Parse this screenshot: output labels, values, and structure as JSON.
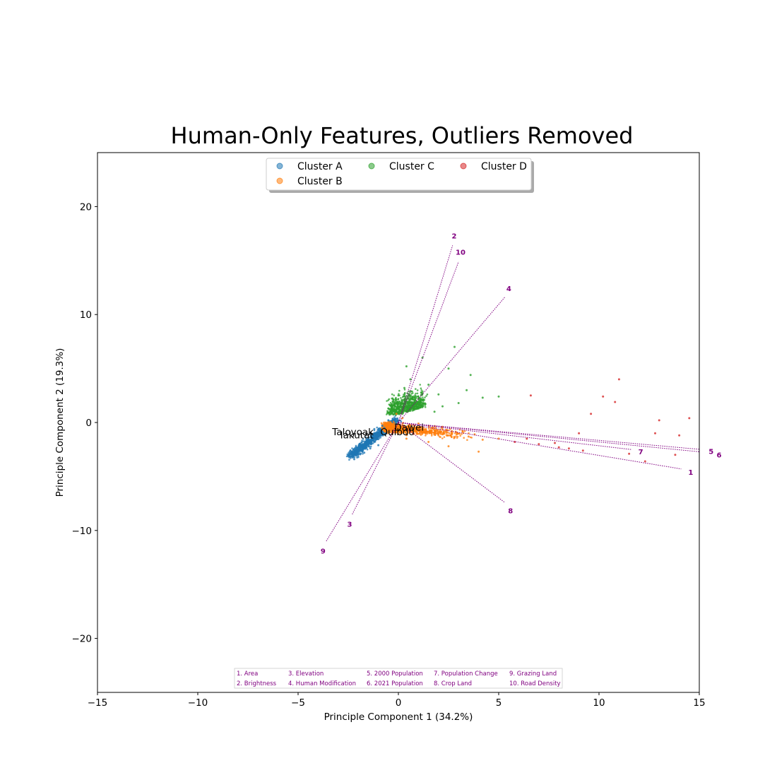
{
  "chart_data": {
    "type": "scatter",
    "title": "Human-Only Features, Outliers Removed",
    "xlabel": "Principle Component 1 (34.2%)",
    "ylabel": "Principle Component 2 (19.3%)",
    "xlim": [
      -15,
      15
    ],
    "ylim": [
      -25,
      25
    ],
    "x_ticks": [
      -15,
      -10,
      -5,
      0,
      5,
      10,
      15
    ],
    "y_ticks": [
      -20,
      -10,
      0,
      10,
      20
    ],
    "x_tick_labels": [
      "−15",
      "−10",
      "−5",
      "0",
      "5",
      "10",
      "15"
    ],
    "y_tick_labels": [
      "−20",
      "−10",
      "0",
      "10",
      "20"
    ],
    "grid": false,
    "legend_position": "top-center",
    "series": [
      {
        "name": "Cluster A",
        "color": "#1f77b4",
        "x": [
          -2.1,
          -1.8,
          -1.5,
          -1.2,
          -0.9,
          -1.7,
          -1.3,
          -1.0,
          -0.7,
          -2.0,
          -1.6,
          -1.1,
          -0.8,
          -0.5,
          -1.4,
          -1.9,
          -2.2,
          -1.0,
          -0.6,
          -1.2
        ],
        "y": [
          -3.0,
          -2.6,
          -2.2,
          -1.8,
          -1.2,
          -2.8,
          -1.5,
          -0.9,
          -0.5,
          -3.2,
          -2.0,
          -1.4,
          -0.3,
          0.2,
          -2.4,
          -2.5,
          -3.4,
          -2.1,
          -1.0,
          -0.6
        ]
      },
      {
        "name": "Cluster B",
        "color": "#ff7f0e",
        "x": [
          -0.6,
          -0.3,
          0.2,
          0.7,
          1.3,
          2.0,
          2.8,
          3.5,
          4.2,
          5.0,
          1.0,
          1.8,
          2.5,
          3.2,
          4.0,
          0.4,
          -0.1,
          1.5,
          2.2,
          3.8
        ],
        "y": [
          -0.2,
          -1.0,
          0.4,
          -0.6,
          -0.9,
          -1.2,
          -1.4,
          -1.3,
          -1.6,
          -1.5,
          -0.1,
          -0.7,
          -2.2,
          -0.8,
          -2.7,
          -1.5,
          0.8,
          -1.8,
          -0.4,
          -1.1
        ]
      },
      {
        "name": "Cluster C",
        "color": "#2ca02c",
        "x": [
          -0.3,
          0.0,
          0.3,
          0.6,
          1.0,
          1.5,
          2.0,
          2.5,
          3.0,
          3.6,
          4.2,
          5.0,
          0.2,
          0.8,
          1.2,
          2.2,
          2.8,
          0.4,
          1.8,
          3.4
        ],
        "y": [
          1.5,
          2.5,
          3.2,
          4.0,
          2.2,
          3.5,
          2.6,
          5.0,
          1.8,
          4.4,
          2.3,
          2.4,
          0.8,
          1.2,
          6.0,
          1.5,
          7.0,
          5.2,
          1.0,
          3.0
        ]
      },
      {
        "name": "Cluster D",
        "color": "#d62728",
        "x": [
          5.8,
          6.4,
          7.0,
          7.8,
          8.5,
          9.2,
          9.6,
          10.2,
          10.8,
          11.5,
          12.3,
          13.0,
          13.8,
          14.5,
          6.6,
          8.0,
          9.0,
          11.0,
          12.8,
          14.0
        ],
        "y": [
          -1.8,
          -1.5,
          -2.0,
          -1.9,
          -2.4,
          -2.6,
          0.8,
          2.4,
          1.9,
          -2.9,
          -3.6,
          0.2,
          -3.0,
          0.4,
          2.5,
          -2.3,
          -1.0,
          4.0,
          -1.0,
          -1.2
        ]
      }
    ],
    "loading_vectors": {
      "color": "#800080",
      "vectors": [
        {
          "label": "1",
          "x": 14.1,
          "y": -4.3
        },
        {
          "label": "2",
          "x": 2.7,
          "y": 16.4
        },
        {
          "label": "3",
          "x": -2.3,
          "y": -8.5
        },
        {
          "label": "4",
          "x": 5.3,
          "y": 11.6
        },
        {
          "label": "5",
          "x": 15.1,
          "y": -2.5
        },
        {
          "label": "6",
          "x": 15.5,
          "y": -2.8
        },
        {
          "label": "7",
          "x": 11.6,
          "y": -2.5
        },
        {
          "label": "8",
          "x": 5.3,
          "y": -7.4
        },
        {
          "label": "9",
          "x": -3.6,
          "y": -11.0
        },
        {
          "label": "10",
          "x": 3.0,
          "y": 14.9
        }
      ]
    },
    "annotations": [
      {
        "text": "Taloyoak",
        "x": -3.3,
        "y": -0.9
      },
      {
        "text": "Iakutat",
        "x": -2.9,
        "y": -1.2
      },
      {
        "text": "Quibdo",
        "x": -0.9,
        "y": -0.9
      },
      {
        "text": "Dawei",
        "x": -0.2,
        "y": -0.5
      }
    ],
    "feature_key": [
      "1. Area",
      "2. Brightness",
      "3. Elevation",
      "4. Human Modification",
      "5. 2000 Population",
      "6. 2021 Population",
      "7. Population Change",
      "8. Crop Land",
      "9. Grazing Land",
      "10. Road Density"
    ]
  }
}
